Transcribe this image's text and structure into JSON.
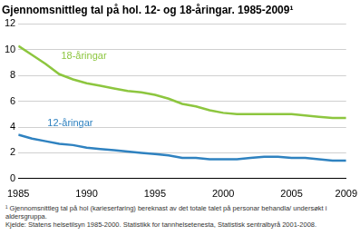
{
  "chart_data": {
    "type": "line",
    "title": "Gjennomsnittleg tal på hol. 12- og 18-åringar. 1985-2009¹",
    "x": [
      1985,
      1986,
      1987,
      1988,
      1989,
      1990,
      1991,
      1992,
      1993,
      1994,
      1995,
      1996,
      1997,
      1998,
      1999,
      2000,
      2001,
      2002,
      2003,
      2004,
      2005,
      2006,
      2007,
      2008,
      2009
    ],
    "series": [
      {
        "name": "18-åringar",
        "color": "#8dc63f",
        "values": [
          10.3,
          9.6,
          8.9,
          8.1,
          7.7,
          7.4,
          7.2,
          7.0,
          6.8,
          6.7,
          6.5,
          6.2,
          5.8,
          5.6,
          5.3,
          5.1,
          5.0,
          5.0,
          5.0,
          5.0,
          5.0,
          4.9,
          4.8,
          4.7,
          4.7
        ]
      },
      {
        "name": "12-åringar",
        "color": "#2f82c0",
        "values": [
          3.4,
          3.1,
          2.9,
          2.7,
          2.6,
          2.4,
          2.3,
          2.2,
          2.1,
          2.0,
          1.9,
          1.8,
          1.6,
          1.6,
          1.5,
          1.5,
          1.5,
          1.6,
          1.7,
          1.7,
          1.6,
          1.6,
          1.5,
          1.4,
          1.4
        ]
      }
    ],
    "xlim": [
      1985,
      2009
    ],
    "xticks": [
      1985,
      1990,
      1995,
      2000,
      2005,
      2009
    ],
    "ylim": [
      0,
      12
    ],
    "yticks": [
      0,
      2,
      4,
      6,
      8,
      10,
      12
    ],
    "grid": true,
    "notes": [
      "¹ Gjennomsnittleg tal på hol (karieserfaring) bereknast av det totale talet på personar behandla/ undersøkt i aldersgruppa.",
      "Kjelde: Statens helsetilsyn 1985-2000. Statistikk for tannhelsetenesta, Statistisk sentralbyrå 2001-2008."
    ]
  }
}
